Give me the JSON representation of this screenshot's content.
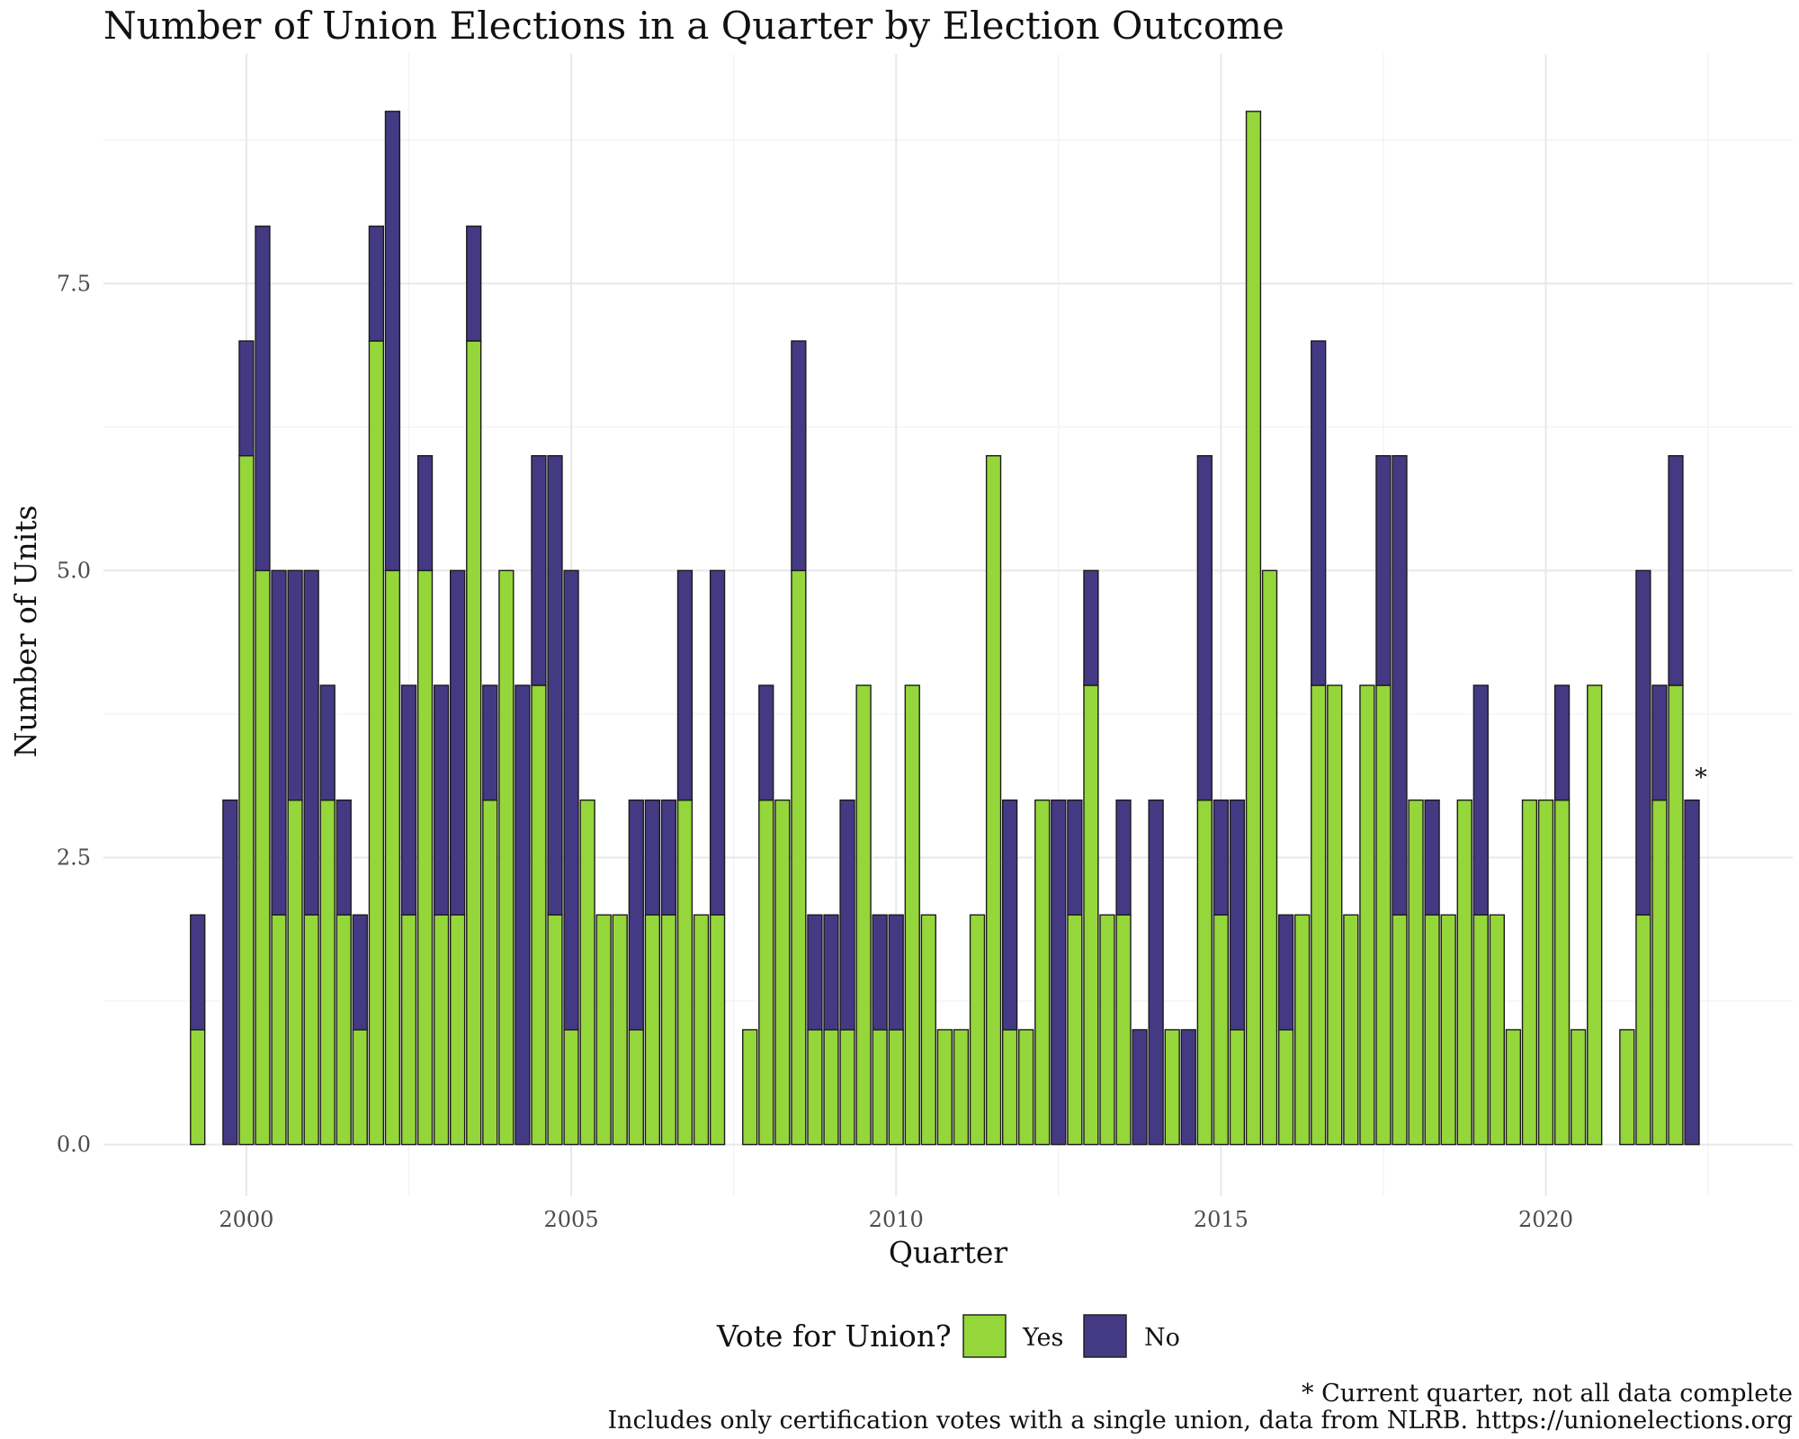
{
  "chart_data": {
    "type": "bar",
    "stacked": true,
    "title": "Number of Union Elections in a Quarter by Election Outcome",
    "xlabel": "Quarter",
    "ylabel": "Number of Units",
    "xlim": [
      1997.8,
      2023.8
    ],
    "ylim": [
      -0.45,
      9.5
    ],
    "x_ticks": [
      2000,
      2005,
      2010,
      2015,
      2020
    ],
    "y_ticks": [
      0.0,
      2.5,
      5.0,
      7.5
    ],
    "y_tick_labels": [
      "0.0",
      "2.5",
      "5.0",
      "7.5"
    ],
    "x_tick_labels": [
      "2000",
      "2005",
      "2010",
      "2015",
      "2020"
    ],
    "grid": true,
    "legend": {
      "title": "Vote for Union?",
      "position": "bottom",
      "entries": [
        {
          "label": "Yes",
          "color": "#95d63a"
        },
        {
          "label": "No",
          "color": "#443a83"
        }
      ]
    },
    "x": [
      1999.25,
      1999.75,
      2000.0,
      2000.25,
      2000.5,
      2000.75,
      2001.0,
      2001.25,
      2001.5,
      2001.75,
      2002.0,
      2002.25,
      2002.5,
      2002.75,
      2003.0,
      2003.25,
      2003.5,
      2003.75,
      2004.0,
      2004.25,
      2004.5,
      2004.75,
      2005.0,
      2005.25,
      2005.5,
      2005.75,
      2006.0,
      2006.25,
      2006.5,
      2006.75,
      2007.0,
      2007.25,
      2007.75,
      2008.0,
      2008.25,
      2008.5,
      2008.75,
      2009.0,
      2009.25,
      2009.5,
      2009.75,
      2010.0,
      2010.25,
      2010.5,
      2010.75,
      2011.0,
      2011.25,
      2011.5,
      2011.75,
      2012.0,
      2012.25,
      2012.5,
      2012.75,
      2013.0,
      2013.25,
      2013.5,
      2013.75,
      2014.0,
      2014.25,
      2014.5,
      2014.75,
      2015.0,
      2015.25,
      2015.5,
      2015.75,
      2016.0,
      2016.25,
      2016.5,
      2016.75,
      2017.0,
      2017.25,
      2017.5,
      2017.75,
      2018.0,
      2018.25,
      2018.5,
      2018.75,
      2019.0,
      2019.25,
      2019.5,
      2019.75,
      2020.0,
      2020.25,
      2020.5,
      2020.75,
      2021.25,
      2021.5,
      2021.75,
      2022.0,
      2022.25
    ],
    "series": [
      {
        "name": "Yes",
        "color": "#95d63a",
        "values": [
          1,
          0,
          6,
          5,
          2,
          3,
          2,
          3,
          2,
          1,
          7,
          5,
          2,
          5,
          2,
          2,
          7,
          3,
          5,
          0,
          4,
          2,
          1,
          3,
          2,
          2,
          1,
          2,
          2,
          3,
          2,
          2,
          1,
          3,
          3,
          5,
          1,
          1,
          1,
          4,
          1,
          1,
          4,
          2,
          1,
          1,
          2,
          6,
          1,
          1,
          3,
          0,
          2,
          4,
          2,
          2,
          0,
          0,
          1,
          0,
          3,
          2,
          1,
          9,
          5,
          1,
          2,
          4,
          4,
          2,
          4,
          4,
          2,
          3,
          2,
          2,
          3,
          2,
          2,
          1,
          3,
          3,
          3,
          1,
          4,
          1,
          2,
          3,
          4,
          0
        ]
      },
      {
        "name": "No",
        "color": "#443a83",
        "values": [
          1,
          3,
          1,
          3,
          3,
          2,
          3,
          1,
          1,
          1,
          1,
          4,
          2,
          1,
          2,
          3,
          1,
          1,
          0,
          4,
          2,
          4,
          4,
          0,
          0,
          0,
          2,
          1,
          1,
          2,
          0,
          3,
          0,
          1,
          0,
          2,
          1,
          1,
          2,
          0,
          1,
          1,
          0,
          0,
          0,
          0,
          0,
          0,
          2,
          0,
          0,
          3,
          1,
          1,
          0,
          1,
          1,
          3,
          0,
          1,
          3,
          1,
          2,
          0,
          0,
          1,
          0,
          3,
          0,
          0,
          0,
          2,
          4,
          0,
          1,
          0,
          0,
          2,
          0,
          0,
          0,
          0,
          1,
          0,
          0,
          0,
          3,
          1,
          2,
          3
        ]
      }
    ],
    "annotations": [
      {
        "text": "*",
        "x": 2022.25,
        "y": 3.3
      }
    ]
  },
  "captions": {
    "line1": "* Current quarter, not all data complete",
    "line2": "Includes only certification votes with a single union, data from NLRB. https://unionelections.org"
  }
}
